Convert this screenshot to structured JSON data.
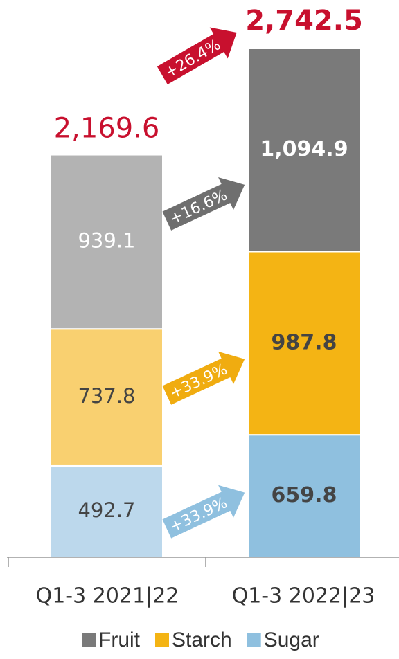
{
  "chart_data": {
    "type": "stacked_bar",
    "categories": [
      "Q1-3 2021|22",
      "Q1-3 2022|23"
    ],
    "series": [
      {
        "name": "Fruit",
        "color": "#7a7a7a",
        "colors": [
          "#b3b3b3",
          "#7a7a7a"
        ],
        "label_color": "#ffffff",
        "values": [
          939.1,
          1094.9
        ],
        "value_labels": [
          "939.1",
          "1,094.9"
        ],
        "change": "+16.6%",
        "change_color": "#6f6f6f"
      },
      {
        "name": "Starch",
        "color": "#f4b414",
        "colors": [
          "#f9d070",
          "#f4b414"
        ],
        "label_color": "#444444",
        "values": [
          737.8,
          987.8
        ],
        "value_labels": [
          "737.8",
          "987.8"
        ],
        "change": "+33.9%",
        "change_color": "#f0ac10"
      },
      {
        "name": "Sugar",
        "color": "#8fc0df",
        "colors": [
          "#bcd8ec",
          "#8fc0df"
        ],
        "label_color": "#444444",
        "values": [
          492.7,
          659.8
        ],
        "value_labels": [
          "492.7",
          "659.8"
        ],
        "change": "+33.9%",
        "change_color": "#8fc0df"
      }
    ],
    "totals": [
      2169.6,
      2742.5
    ],
    "total_labels": [
      "2,169.6",
      "2,742.5"
    ],
    "total_color": "#c8102e",
    "total_change": "+26.4%"
  }
}
